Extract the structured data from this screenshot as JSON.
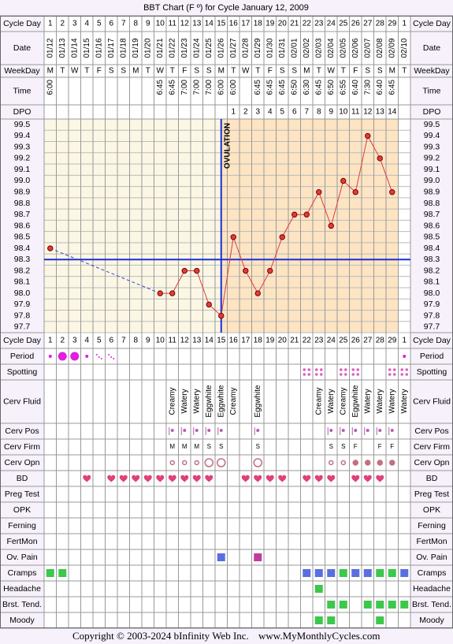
{
  "chart_data": {
    "type": "line",
    "title": "BBT Chart (F º) for Cycle January 12, 2009",
    "top_rows": [
      "Cycle Day",
      "Date",
      "WeekDay",
      "Time",
      "DPO"
    ],
    "bottom_rows": [
      "Cycle Day",
      "Period",
      "Spotting",
      "Cerv Fluid",
      "Cerv Pos",
      "Cerv Firm",
      "Cerv Opn",
      "BD",
      "Preg Test",
      "OPK",
      "Ferning",
      "FertMon",
      "Ov. Pain",
      "Cramps",
      "Headache",
      "Brst. Tend.",
      "Moody"
    ],
    "categories": [
      1,
      2,
      3,
      4,
      5,
      6,
      7,
      8,
      9,
      10,
      11,
      12,
      13,
      14,
      15,
      16,
      17,
      18,
      19,
      20,
      21,
      22,
      23,
      24,
      25,
      26,
      27,
      28,
      29,
      1
    ],
    "dates": [
      "01/12",
      "01/13",
      "01/14",
      "01/15",
      "01/16",
      "01/17",
      "01/18",
      "01/19",
      "01/20",
      "01/21",
      "01/22",
      "01/23",
      "01/24",
      "01/25",
      "01/26",
      "01/27",
      "01/28",
      "01/29",
      "01/30",
      "01/31",
      "02/01",
      "02/02",
      "02/03",
      "02/04",
      "02/05",
      "02/06",
      "02/07",
      "02/08",
      "02/09",
      "02/10"
    ],
    "weekdays": [
      "M",
      "T",
      "W",
      "T",
      "F",
      "S",
      "S",
      "M",
      "T",
      "W",
      "T",
      "F",
      "S",
      "S",
      "M",
      "T",
      "W",
      "T",
      "F",
      "S",
      "S",
      "M",
      "T",
      "W",
      "T",
      "F",
      "S",
      "S",
      "M",
      "T"
    ],
    "times": [
      "6:00",
      null,
      null,
      null,
      null,
      null,
      null,
      null,
      null,
      "6:45",
      "6:45",
      "7:00",
      "7:00",
      "7:00",
      "6:00",
      "6:00",
      null,
      "6:45",
      "6:45",
      "6:45",
      "6:50",
      "6:30",
      "6:45",
      "6:50",
      "6:55",
      "6:40",
      "7:30",
      "6:40",
      "6:45",
      null
    ],
    "dpo": [
      null,
      null,
      null,
      null,
      null,
      null,
      null,
      null,
      null,
      null,
      null,
      null,
      null,
      null,
      null,
      1,
      2,
      3,
      4,
      5,
      6,
      7,
      8,
      9,
      10,
      11,
      12,
      13,
      14,
      null
    ],
    "values": [
      98.4,
      null,
      null,
      null,
      null,
      null,
      null,
      null,
      null,
      98,
      98,
      98.2,
      98.2,
      97.9,
      97.8,
      98.5,
      98.2,
      98,
      98.2,
      98.5,
      98.7,
      98.7,
      98.9,
      98.6,
      99,
      98.9,
      99.4,
      99.2,
      98.9,
      null
    ],
    "color": "#e03c3c",
    "ylim": [
      97.65,
      99.55
    ],
    "yticks": [
      99.5,
      99.4,
      99.3,
      99.2,
      99.1,
      {
        "value": 99,
        "label": "99.0"
      },
      98.9,
      98.8,
      98.7,
      98.6,
      98.5,
      98.4,
      98.3,
      98.2,
      98.1,
      {
        "value": 98,
        "label": "98.0"
      },
      97.9,
      97.8,
      97.7
    ],
    "grid": true,
    "coverline": 98.3,
    "ovulation_day": 15,
    "ovulation_label": "OVULATION",
    "cervical_fluid": [
      null,
      null,
      null,
      null,
      null,
      null,
      null,
      null,
      null,
      null,
      "Creamy",
      "Watery",
      "Watery",
      "Eggwhite",
      "Eggwhite",
      "Creamy",
      null,
      "Eggwhite",
      null,
      null,
      null,
      null,
      "Creamy",
      "Watery",
      "Creamy",
      "Eggwhite",
      "Watery",
      "Watery",
      "Watery",
      "Watery"
    ],
    "cervical_firmness": [
      null,
      null,
      null,
      null,
      null,
      null,
      null,
      null,
      null,
      null,
      "M",
      "M",
      "M",
      "S",
      "S",
      null,
      null,
      "S",
      null,
      null,
      null,
      null,
      null,
      "S",
      "S",
      "F",
      null,
      "F",
      "F",
      null
    ],
    "copyright": "Copyright © 2003-2024 bInfinity Web Inc.",
    "website": "www.MyMonthlyCycles.com"
  }
}
